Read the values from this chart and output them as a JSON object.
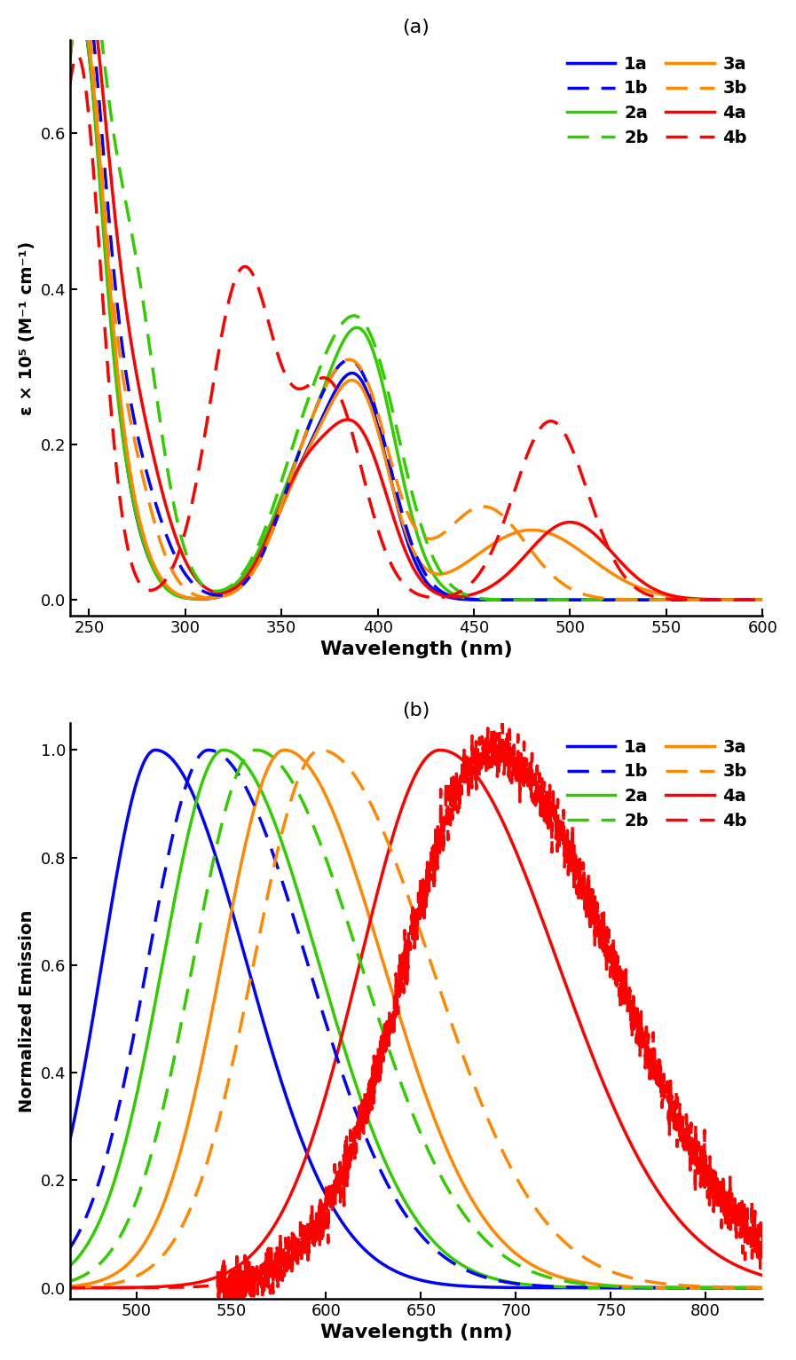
{
  "panel_a": {
    "title": "(a)",
    "xlabel": "Wavelength (nm)",
    "ylabel": "ε × 10⁵ (M⁻¹ cm⁻¹)",
    "xlim": [
      240,
      600
    ],
    "ylim": [
      -0.02,
      0.72
    ],
    "yticks": [
      0.0,
      0.2,
      0.4,
      0.6
    ],
    "xticks": [
      250,
      300,
      350,
      400,
      450,
      500,
      550,
      600
    ]
  },
  "panel_b": {
    "title": "(b)",
    "xlabel": "Wavelength (nm)",
    "ylabel": "Normalized Emission",
    "xlim": [
      465,
      830
    ],
    "ylim": [
      -0.02,
      1.05
    ],
    "yticks": [
      0.0,
      0.2,
      0.4,
      0.6,
      0.8,
      1.0
    ],
    "xticks": [
      500,
      550,
      600,
      650,
      700,
      750,
      800
    ]
  },
  "colors": {
    "1": "#0000FF",
    "2": "#33CC00",
    "3": "#FF8800",
    "4": "#FF0000"
  }
}
